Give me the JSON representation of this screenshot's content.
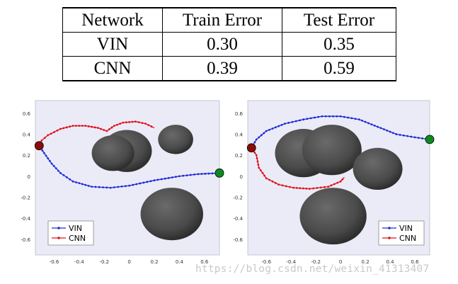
{
  "table": {
    "headers": [
      "Network",
      "Train Error",
      "Test Error"
    ],
    "rows": [
      {
        "network": "VIN",
        "train": "0.30",
        "test": "0.35"
      },
      {
        "network": "CNN",
        "train": "0.39",
        "test": "0.59"
      }
    ]
  },
  "colors": {
    "plot_background": "#ebebf7",
    "vin": "#1f2bd6",
    "cnn": "#e0101a",
    "start_marker": "#8b0a0a",
    "goal_marker": "#0b8a1f",
    "obstacle": "#4a4a4a"
  },
  "chart_data": [
    {
      "type": "line",
      "xlim": [
        -0.75,
        0.72
      ],
      "ylim": [
        -0.75,
        0.72
      ],
      "xticks": [
        "-0.6",
        "-0.4",
        "-0.2",
        "0",
        "0.2",
        "0.4",
        "0.6"
      ],
      "yticks": [
        "0.6",
        "0.4",
        "0.2",
        "0",
        "-0.2",
        "-0.4",
        "-0.6"
      ],
      "legend": {
        "position": "bottom-left",
        "entries": [
          "VIN",
          "CNN"
        ]
      },
      "start": [
        -0.72,
        0.29
      ],
      "goal": [
        0.72,
        0.03
      ],
      "obstacles": [
        {
          "cx": -0.02,
          "cy": 0.24,
          "r": 0.2
        },
        {
          "cx": -0.13,
          "cy": 0.22,
          "r": 0.17
        },
        {
          "cx": 0.37,
          "cy": 0.35,
          "r": 0.14
        },
        {
          "cx": 0.34,
          "cy": -0.36,
          "r": 0.25
        }
      ],
      "series": [
        {
          "name": "VIN",
          "points": [
            [
              -0.72,
              0.29
            ],
            [
              -0.68,
              0.22
            ],
            [
              -0.62,
              0.12
            ],
            [
              -0.55,
              0.03
            ],
            [
              -0.45,
              -0.05
            ],
            [
              -0.3,
              -0.1
            ],
            [
              -0.15,
              -0.11
            ],
            [
              0.0,
              -0.09
            ],
            [
              0.2,
              -0.04
            ],
            [
              0.4,
              0.0
            ],
            [
              0.55,
              0.02
            ],
            [
              0.72,
              0.03
            ]
          ]
        },
        {
          "name": "CNN",
          "points": [
            [
              -0.72,
              0.29
            ],
            [
              -0.7,
              0.34
            ],
            [
              -0.65,
              0.39
            ],
            [
              -0.55,
              0.45
            ],
            [
              -0.45,
              0.48
            ],
            [
              -0.35,
              0.48
            ],
            [
              -0.25,
              0.46
            ],
            [
              -0.18,
              0.43
            ],
            [
              -0.12,
              0.48
            ],
            [
              -0.05,
              0.51
            ],
            [
              0.05,
              0.52
            ],
            [
              0.13,
              0.5
            ],
            [
              0.2,
              0.46
            ]
          ]
        }
      ]
    },
    {
      "type": "line",
      "xlim": [
        -0.75,
        0.72
      ],
      "ylim": [
        -0.75,
        0.72
      ],
      "xticks": [
        "-0.6",
        "-0.4",
        "-0.2",
        "0",
        "0.2",
        "0.4",
        "0.6"
      ],
      "yticks": [
        "0.6",
        "0.4",
        "0.2",
        "0",
        "-0.2",
        "-0.4",
        "-0.6"
      ],
      "legend": {
        "position": "bottom-right",
        "entries": [
          "VIN",
          "CNN"
        ]
      },
      "start": [
        -0.72,
        0.27
      ],
      "goal": [
        0.72,
        0.35
      ],
      "obstacles": [
        {
          "cx": -0.3,
          "cy": 0.22,
          "r": 0.23
        },
        {
          "cx": -0.07,
          "cy": 0.25,
          "r": 0.24
        },
        {
          "cx": 0.3,
          "cy": 0.07,
          "r": 0.2
        },
        {
          "cx": -0.06,
          "cy": -0.38,
          "r": 0.27
        }
      ],
      "series": [
        {
          "name": "VIN",
          "points": [
            [
              -0.72,
              0.27
            ],
            [
              -0.68,
              0.35
            ],
            [
              -0.6,
              0.43
            ],
            [
              -0.45,
              0.5
            ],
            [
              -0.3,
              0.54
            ],
            [
              -0.15,
              0.57
            ],
            [
              0.0,
              0.57
            ],
            [
              0.15,
              0.54
            ],
            [
              0.3,
              0.47
            ],
            [
              0.45,
              0.4
            ],
            [
              0.6,
              0.37
            ],
            [
              0.72,
              0.35
            ]
          ]
        },
        {
          "name": "CNN",
          "points": [
            [
              -0.72,
              0.27
            ],
            [
              -0.68,
              0.2
            ],
            [
              -0.66,
              0.08
            ],
            [
              -0.6,
              -0.02
            ],
            [
              -0.5,
              -0.08
            ],
            [
              -0.38,
              -0.11
            ],
            [
              -0.25,
              -0.12
            ],
            [
              -0.1,
              -0.1
            ],
            [
              0.0,
              -0.05
            ],
            [
              0.03,
              -0.01
            ]
          ]
        }
      ]
    }
  ],
  "watermark": "https://blog.csdn.net/weixin_41313407"
}
